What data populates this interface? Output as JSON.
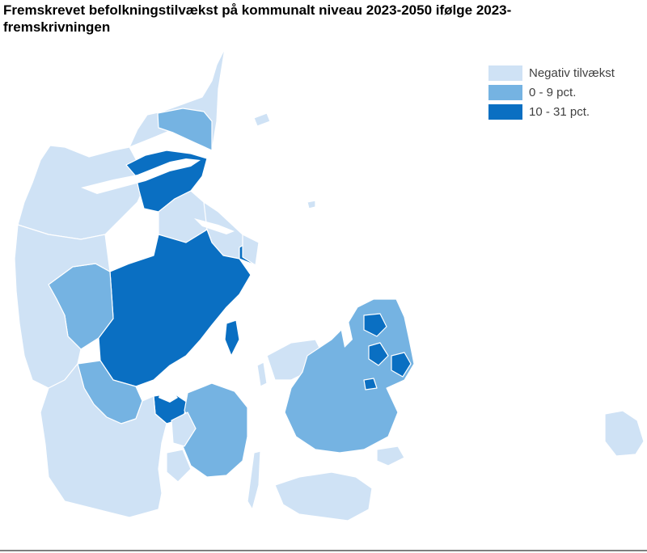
{
  "title": "Fremskrevet befolkningstilvækst på kommunalt niveau 2023-2050 ifølge 2023-fremskrivningen",
  "legend": [
    {
      "label": "Negativ tilvækst",
      "color": "#cfe2f5"
    },
    {
      "label": "0 - 9 pct.",
      "color": "#75b3e2"
    },
    {
      "label": "10 - 31 pct.",
      "color": "#0a6fc2"
    }
  ],
  "colors": {
    "background": "#ffffff",
    "border": "#ffffff",
    "rule": "#7f7f7f"
  }
}
